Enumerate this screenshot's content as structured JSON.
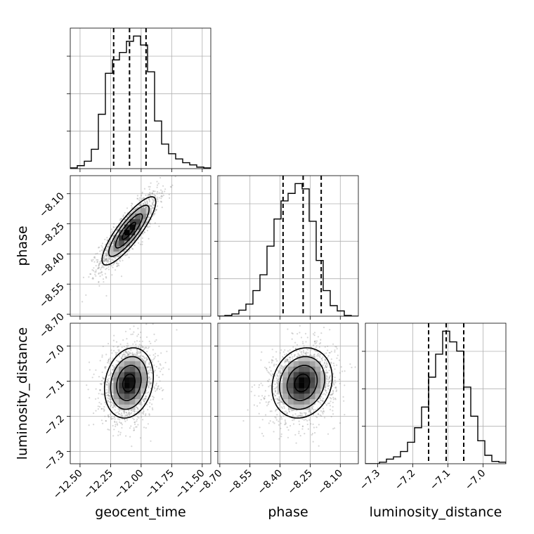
{
  "chart_data": {
    "type": "scatter",
    "parameters": [
      "geocent_time",
      "phase",
      "luminosity_distance"
    ],
    "ranges": {
      "geocent_time": [
        -12.58,
        -11.43
      ],
      "phase": [
        -8.71,
        -8.01
      ],
      "luminosity_distance": [
        -7.335,
        -6.935
      ]
    },
    "ticks": {
      "geocent_time": [
        -12.5,
        -12.25,
        -12.0,
        -11.75,
        -11.5
      ],
      "phase": [
        -8.7,
        -8.55,
        -8.4,
        -8.25,
        -8.1
      ],
      "luminosity_distance": [
        -7.3,
        -7.2,
        -7.1,
        -7.0
      ]
    },
    "tick_labels": {
      "geocent_time": [
        "−12.50",
        "−12.25",
        "−12.00",
        "−11.75",
        "−11.50"
      ],
      "phase": [
        "−8.70",
        "−8.55",
        "−8.40",
        "−8.25",
        "−8.10"
      ],
      "luminosity_distance": [
        "−7.3",
        "−7.2",
        "−7.1",
        "−7.0"
      ]
    },
    "quantiles": {
      "geocent_time": [
        -12.225,
        -12.095,
        -11.96
      ],
      "phase": [
        -8.385,
        -8.285,
        -8.195
      ],
      "luminosity_distance": [
        -7.155,
        -7.105,
        -7.055
      ]
    },
    "histograms": {
      "geocent_time": {
        "edges": [
          -12.58,
          -12.5225,
          -12.465,
          -12.4075,
          -12.35,
          -12.2925,
          -12.235,
          -12.1775,
          -12.12,
          -12.0625,
          -12.005,
          -11.9475,
          -11.89,
          -11.8325,
          -11.775,
          -11.7175,
          -11.66,
          -11.6025,
          -11.545,
          -11.4875,
          -11.43
        ],
        "counts": [
          1,
          4,
          10,
          26,
          73,
          128,
          146,
          156,
          171,
          178,
          166,
          130,
          64,
          33,
          20,
          13,
          8,
          5,
          2,
          1
        ]
      },
      "phase": {
        "edges": [
          -8.71,
          -8.675,
          -8.64,
          -8.605,
          -8.57,
          -8.535,
          -8.5,
          -8.465,
          -8.43,
          -8.395,
          -8.36,
          -8.325,
          -8.29,
          -8.255,
          -8.22,
          -8.185,
          -8.15,
          -8.115,
          -8.08,
          -8.045,
          -8.01
        ],
        "counts": [
          0,
          1,
          3,
          8,
          16,
          34,
          55,
          93,
          129,
          153,
          163,
          176,
          169,
          126,
          74,
          34,
          14,
          7,
          1,
          0
        ]
      },
      "luminosity_distance": {
        "edges": [
          -7.335,
          -7.315,
          -7.295,
          -7.275,
          -7.255,
          -7.235,
          -7.215,
          -7.195,
          -7.175,
          -7.155,
          -7.135,
          -7.115,
          -7.095,
          -7.075,
          -7.055,
          -7.035,
          -7.015,
          -6.995,
          -6.975,
          -6.955,
          -6.935
        ],
        "counts": [
          0,
          0,
          2,
          6,
          9,
          16,
          28,
          47,
          74,
          113,
          143,
          173,
          159,
          147,
          100,
          62,
          30,
          11,
          3,
          2
        ]
      }
    },
    "density_2d": {
      "phase_vs_geocent_time": {
        "mean": [
          -12.1,
          -8.285
        ],
        "std": [
          0.11,
          0.085
        ],
        "corr": 0.85,
        "peak": [
          -12.08,
          -8.26
        ]
      },
      "luminosity_distance_vs_geocent_time": {
        "mean": [
          -12.1,
          -7.105
        ],
        "std": [
          0.1,
          0.05
        ],
        "corr": 0.18,
        "peak": [
          -12.12,
          -7.115
        ]
      },
      "luminosity_distance_vs_phase": {
        "mean": [
          -8.29,
          -7.105
        ],
        "std": [
          0.075,
          0.05
        ],
        "corr": 0.15,
        "peak": [
          -8.25,
          -7.095
        ]
      }
    },
    "contour_levels_sigma": [
      0.5,
      1.0,
      1.5,
      2.0
    ],
    "grid": true
  }
}
